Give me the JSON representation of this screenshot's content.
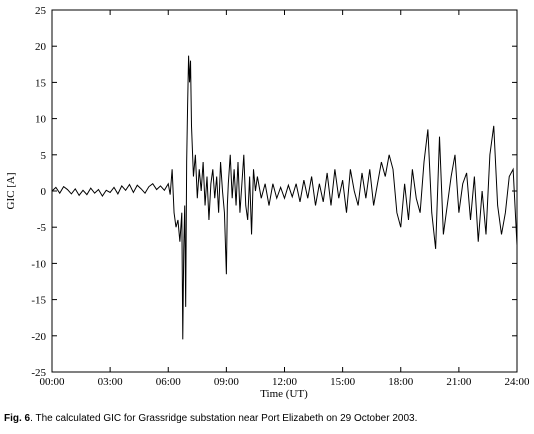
{
  "chart_data": {
    "type": "line",
    "xlabel": "Time (UT)",
    "ylabel": "GIC [A]",
    "caption": {
      "label": "Fig. 6",
      "text": ". The calculated GIC for Grassridge substation near Port Elizabeth on 29 October 2003."
    },
    "xlim": [
      0,
      24
    ],
    "xticks": [
      {
        "value": 0,
        "label": "00:00"
      },
      {
        "value": 3,
        "label": "03:00"
      },
      {
        "value": 6,
        "label": "06:00"
      },
      {
        "value": 9,
        "label": "09:00"
      },
      {
        "value": 12,
        "label": "12:00"
      },
      {
        "value": 15,
        "label": "15:00"
      },
      {
        "value": 18,
        "label": "18:00"
      },
      {
        "value": 21,
        "label": "21:00"
      },
      {
        "value": 24,
        "label": "24:00"
      }
    ],
    "ylim": [
      -25,
      25
    ],
    "yticks": [
      -25,
      -20,
      -15,
      -10,
      -5,
      0,
      5,
      10,
      15,
      20,
      25
    ],
    "color": "#000000",
    "x": [
      0,
      0.2,
      0.4,
      0.6,
      0.8,
      1.0,
      1.2,
      1.4,
      1.6,
      1.8,
      2.0,
      2.2,
      2.4,
      2.6,
      2.8,
      3.0,
      3.2,
      3.4,
      3.6,
      3.8,
      4.0,
      4.2,
      4.4,
      4.6,
      4.8,
      5.0,
      5.2,
      5.4,
      5.6,
      5.8,
      6.0,
      6.1,
      6.2,
      6.3,
      6.4,
      6.5,
      6.6,
      6.7,
      6.75,
      6.8,
      6.85,
      6.9,
      6.95,
      7.0,
      7.05,
      7.1,
      7.15,
      7.2,
      7.3,
      7.4,
      7.5,
      7.6,
      7.7,
      7.8,
      7.9,
      8.0,
      8.1,
      8.2,
      8.3,
      8.4,
      8.5,
      8.6,
      8.7,
      8.8,
      8.9,
      9.0,
      9.05,
      9.1,
      9.2,
      9.3,
      9.4,
      9.5,
      9.6,
      9.7,
      9.8,
      9.9,
      10.0,
      10.1,
      10.2,
      10.3,
      10.4,
      10.5,
      10.6,
      10.8,
      11.0,
      11.2,
      11.4,
      11.6,
      11.8,
      12.0,
      12.2,
      12.4,
      12.6,
      12.8,
      13.0,
      13.2,
      13.4,
      13.6,
      13.8,
      14.0,
      14.2,
      14.4,
      14.6,
      14.8,
      15.0,
      15.2,
      15.4,
      15.6,
      15.8,
      16.0,
      16.2,
      16.4,
      16.6,
      16.8,
      17.0,
      17.2,
      17.4,
      17.6,
      17.8,
      18.0,
      18.2,
      18.4,
      18.6,
      18.8,
      19.0,
      19.2,
      19.4,
      19.6,
      19.8,
      20.0,
      20.2,
      20.4,
      20.6,
      20.8,
      21.0,
      21.2,
      21.4,
      21.6,
      21.8,
      22.0,
      22.2,
      22.4,
      22.6,
      22.8,
      23.0,
      23.2,
      23.4,
      23.6,
      23.8,
      24.0
    ],
    "values": [
      0,
      0.5,
      -0.3,
      0.6,
      0.2,
      -0.4,
      0.3,
      -0.6,
      0.1,
      -0.5,
      0.4,
      -0.3,
      0.2,
      -0.7,
      0.1,
      -0.2,
      0.5,
      -0.4,
      0.7,
      0.1,
      0.9,
      -0.2,
      0.8,
      0.3,
      -0.3,
      0.6,
      1.0,
      0.2,
      0.7,
      0.1,
      1.0,
      -0.5,
      3,
      -3,
      -5,
      -4,
      -7,
      -3,
      -20.5,
      -8,
      -2,
      -16,
      4,
      12,
      18.7,
      15,
      18,
      9,
      2,
      5,
      -1,
      3,
      0,
      4,
      -2,
      2,
      -4,
      1,
      3,
      -1,
      2,
      -3,
      4,
      0,
      -3,
      -11.5,
      -2,
      1,
      5,
      -1,
      3,
      -2,
      4,
      -3,
      1,
      5,
      -2,
      -4,
      2,
      -6,
      3,
      0,
      2,
      -1,
      1,
      -2,
      1,
      -1,
      0.5,
      -1,
      0.8,
      -0.8,
      1,
      -1.5,
      1.5,
      -1,
      2,
      -2,
      1,
      -1.5,
      2.5,
      -2,
      3,
      -1,
      1.5,
      -3,
      3,
      0,
      -2,
      2.5,
      -1,
      3,
      -2,
      1,
      4,
      2,
      5,
      3,
      -3,
      -5,
      1,
      -4,
      3,
      -1,
      -3,
      4,
      8.5,
      -3,
      -8,
      7.5,
      -6,
      -2,
      2,
      5,
      -3,
      1,
      2.5,
      -4,
      2,
      -7,
      0,
      -6,
      5,
      9,
      -2,
      -6,
      -3,
      2,
      3,
      -7.5
    ]
  }
}
